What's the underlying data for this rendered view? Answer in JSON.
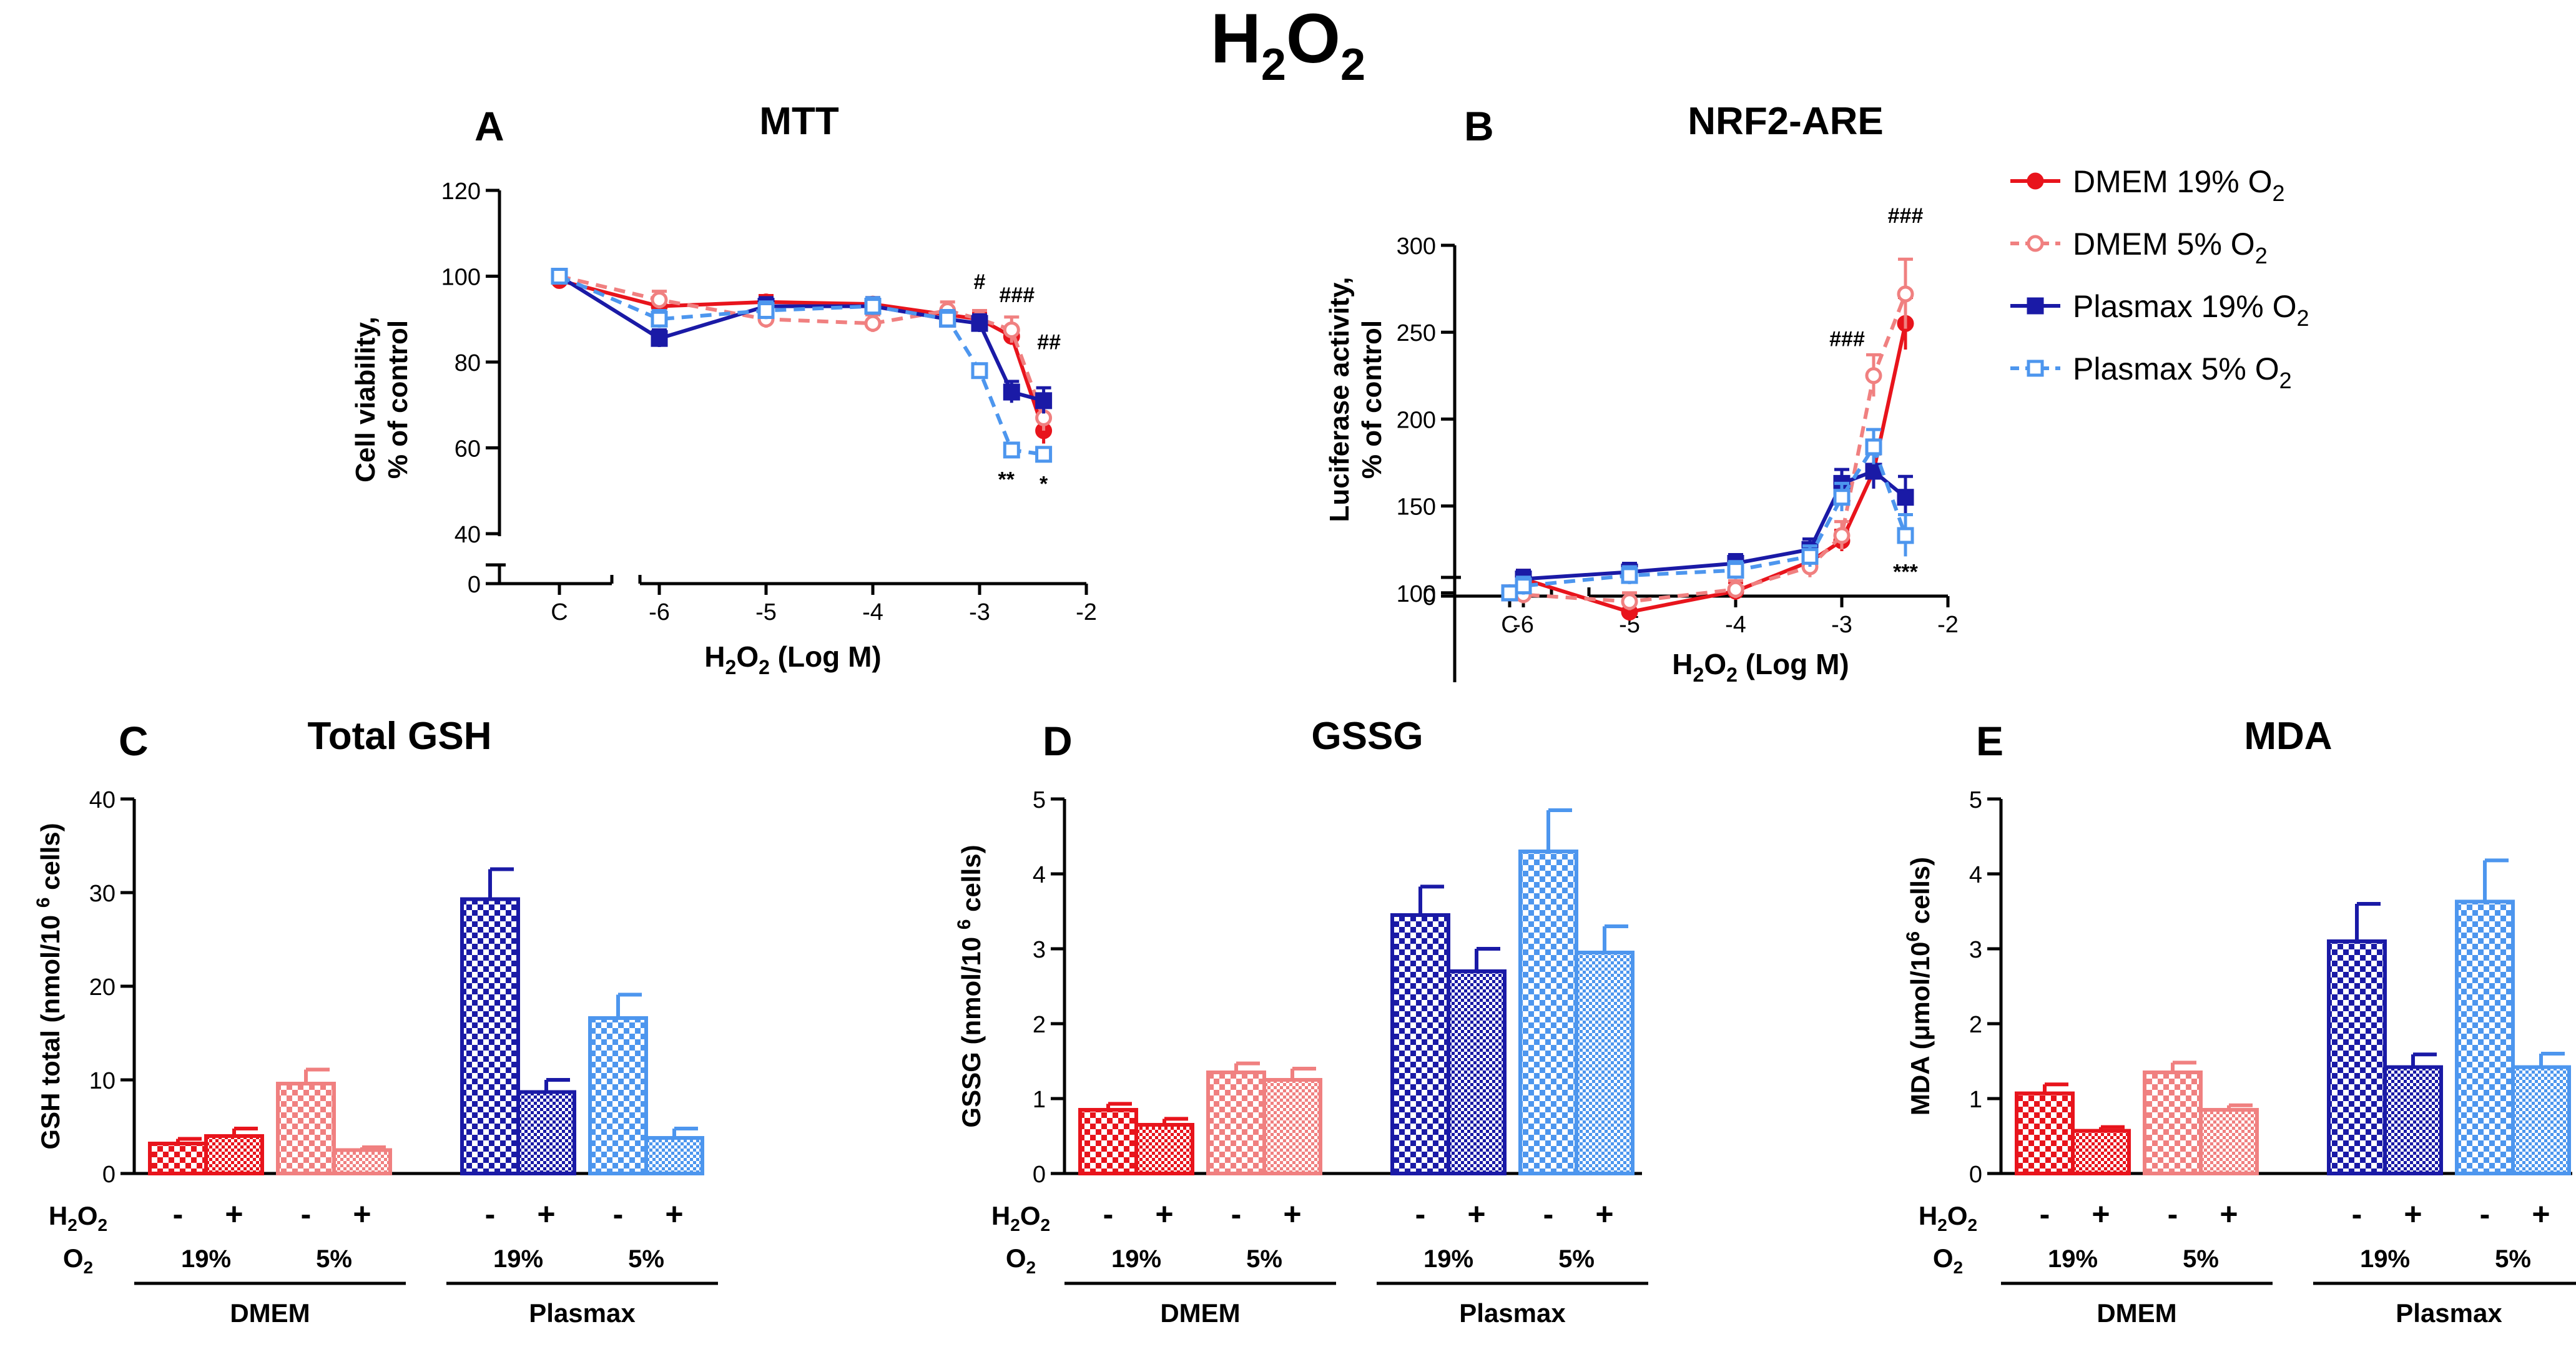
{
  "figure": {
    "title_main": "H",
    "title_sub1": "2",
    "title_mid": "O",
    "title_sub2": "2"
  },
  "colors": {
    "dmem19": "#e8141c",
    "dmem5": "#f08080",
    "plasmax19": "#1a1aa6",
    "plasmax5": "#4d96ee"
  },
  "legend": [
    {
      "key": "dmem19",
      "label": "DMEM 19% O",
      "sub": "2",
      "marker": "circle",
      "dash": false
    },
    {
      "key": "dmem5",
      "label": "DMEM 5% O",
      "sub": "2",
      "marker": "open-circle",
      "dash": true
    },
    {
      "key": "plasmax19",
      "label": "Plasmax 19% O",
      "sub": "2",
      "marker": "square",
      "dash": false
    },
    {
      "key": "plasmax5",
      "label": "Plasmax 5% O",
      "sub": "2",
      "marker": "open-square",
      "dash": true
    }
  ],
  "chart_data": [
    {
      "id": "A",
      "type": "line",
      "panel_letter": "A",
      "title": "MTT",
      "ylabel_line1": "Cell viability,",
      "ylabel_line2": "% of control",
      "xlabel_pre": "H",
      "xlabel_sub": "2",
      "xlabel_mid": "O",
      "xlabel_sub2": "2",
      "xlabel_post": " (Log M)",
      "ylim": [
        40,
        120
      ],
      "yticks": [
        40,
        60,
        80,
        100,
        120
      ],
      "ybreak_tick": 0,
      "xlim": [
        -7,
        -2
      ],
      "xticks": [
        -6,
        -5,
        -4,
        -3,
        -2
      ],
      "control_label": "C",
      "series": [
        {
          "name": "DMEM 19% O2",
          "key": "dmem19",
          "control": 99,
          "x": [
            -6,
            -5,
            -4,
            -3.3,
            -3,
            -2.7,
            -2.4
          ],
          "y": [
            93,
            94,
            93.5,
            91,
            90,
            86,
            64
          ],
          "err": [
            1.5,
            1.5,
            1.5,
            1.5,
            1.5,
            2,
            3
          ]
        },
        {
          "name": "DMEM 5% O2",
          "key": "dmem5",
          "control": 100,
          "x": [
            -6,
            -5,
            -4,
            -3.3,
            -3,
            -2.7,
            -2.4
          ],
          "y": [
            94.5,
            90,
            89,
            92,
            90,
            87.5,
            67
          ],
          "err": [
            2,
            2,
            2,
            2,
            2,
            3,
            3
          ]
        },
        {
          "name": "Plasmax 19% O2",
          "key": "plasmax19",
          "control": 100,
          "x": [
            -6,
            -5,
            -4,
            -3.3,
            -3,
            -2.7,
            -2.4
          ],
          "y": [
            85.5,
            93,
            93,
            90,
            89,
            73,
            71
          ],
          "err": [
            2,
            2,
            2,
            2,
            2,
            2.5,
            3
          ]
        },
        {
          "name": "Plasmax 5% O2",
          "key": "plasmax5",
          "control": 100,
          "x": [
            -6,
            -5,
            -4,
            -3.3,
            -3,
            -2.7,
            -2.4
          ],
          "y": [
            90,
            92,
            93,
            90,
            78,
            59.5,
            58.5
          ],
          "err": [
            2,
            2,
            2,
            2,
            1.5,
            1.5,
            1.5
          ]
        }
      ],
      "annotations": [
        {
          "text": "#",
          "x": -3,
          "y": 97
        },
        {
          "text": "###",
          "x": -2.65,
          "y": 94
        },
        {
          "text": "##",
          "x": -2.35,
          "y": 83
        },
        {
          "text": "**",
          "x": -2.75,
          "y": 51
        },
        {
          "text": "*",
          "x": -2.4,
          "y": 50
        }
      ]
    },
    {
      "id": "B",
      "type": "line",
      "panel_letter": "B",
      "title": "NRF2-ARE",
      "ylabel_line1": "Luciferase activity,",
      "ylabel_line2": "% of control",
      "xlabel_pre": "H",
      "xlabel_sub": "2",
      "xlabel_mid": "O",
      "xlabel_sub2": "2",
      "xlabel_post": " (Log M)",
      "ylim": [
        50,
        300
      ],
      "yticks": [
        100,
        150,
        200,
        250,
        300
      ],
      "ybreak_tick": 0,
      "xlim": [
        -7,
        -2
      ],
      "xticks": [
        -6,
        -5,
        -4,
        -3,
        -2
      ],
      "control_label": "C",
      "series": [
        {
          "name": "DMEM 19% O2",
          "key": "dmem19",
          "control": 100,
          "x": [
            -6,
            -5,
            -4,
            -3.3,
            -3,
            -2.7,
            -2.4
          ],
          "y": [
            108,
            89,
            101,
            118,
            130,
            170,
            255
          ],
          "err": [
            5,
            5,
            5,
            6,
            6,
            10,
            15
          ]
        },
        {
          "name": "DMEM 5% O2",
          "key": "dmem5",
          "control": 100,
          "x": [
            -6,
            -5,
            -4,
            -3.3,
            -3,
            -2.7,
            -2.4
          ],
          "y": [
            99,
            95,
            102,
            115,
            133,
            225,
            272
          ],
          "err": [
            5,
            5,
            5,
            6,
            8,
            12,
            20
          ]
        },
        {
          "name": "Plasmax 19% O2",
          "key": "plasmax19",
          "control": 100,
          "x": [
            -6,
            -5,
            -4,
            -3.3,
            -3,
            -2.7,
            -2.4
          ],
          "y": [
            108,
            112,
            117,
            125,
            163,
            170,
            155
          ],
          "err": [
            5,
            5,
            5,
            6,
            8,
            10,
            12
          ]
        },
        {
          "name": "Plasmax 5% O2",
          "key": "plasmax5",
          "control": 100,
          "x": [
            -6,
            -5,
            -4,
            -3.3,
            -3,
            -2.7,
            -2.4
          ],
          "y": [
            104,
            110,
            113,
            121,
            155,
            184,
            133
          ],
          "err": [
            5,
            5,
            5,
            6,
            8,
            10,
            12
          ]
        }
      ],
      "annotations": [
        {
          "text": "###",
          "x": -2.95,
          "y": 242
        },
        {
          "text": "###",
          "x": -2.4,
          "y": 313
        },
        {
          "text": "***",
          "x": -2.4,
          "y": 108
        }
      ]
    },
    {
      "id": "C",
      "type": "bar",
      "panel_letter": "C",
      "title": "Total GSH",
      "ylabel": "GSH total (nmol/10 ",
      "ylabel_sup": "6",
      "ylabel_post": " cells)",
      "ylim": [
        0,
        40
      ],
      "yticks": [
        0,
        10,
        20,
        30,
        40
      ],
      "categories": [
        "DMEM 19% -",
        "DMEM 19% +",
        "DMEM 5% -",
        "DMEM 5% +",
        "Plasmax 19% -",
        "Plasmax 19% +",
        "Plasmax 5% -",
        "Plasmax 5% +"
      ],
      "bar_keys": [
        "dmem19",
        "dmem19",
        "dmem5",
        "dmem5",
        "plasmax19",
        "plasmax19",
        "plasmax5",
        "plasmax5"
      ],
      "values": [
        3.2,
        4.0,
        9.6,
        2.5,
        29.3,
        8.7,
        16.6,
        3.8
      ],
      "errors": [
        0.5,
        0.8,
        1.5,
        0.3,
        3.2,
        1.3,
        2.5,
        1.0
      ]
    },
    {
      "id": "D",
      "type": "bar",
      "panel_letter": "D",
      "title": "GSSG",
      "ylabel": "GSSG (nmol/10 ",
      "ylabel_sup": "6",
      "ylabel_post": " cells)",
      "ylim": [
        0,
        5
      ],
      "yticks": [
        0,
        1,
        2,
        3,
        4,
        5
      ],
      "categories": [
        "DMEM 19% -",
        "DMEM 19% +",
        "DMEM 5% -",
        "DMEM 5% +",
        "Plasmax 19% -",
        "Plasmax 19% +",
        "Plasmax 5% -",
        "Plasmax 5% +"
      ],
      "bar_keys": [
        "dmem19",
        "dmem19",
        "dmem5",
        "dmem5",
        "plasmax19",
        "plasmax19",
        "plasmax5",
        "plasmax5"
      ],
      "values": [
        0.85,
        0.65,
        1.35,
        1.25,
        3.45,
        2.7,
        4.3,
        2.95
      ],
      "errors": [
        0.08,
        0.08,
        0.12,
        0.15,
        0.38,
        0.3,
        0.55,
        0.35
      ]
    },
    {
      "id": "E",
      "type": "bar",
      "panel_letter": "E",
      "title": "MDA",
      "ylabel": "MDA (μmol/10",
      "ylabel_sup": "6",
      "ylabel_post": " cells)",
      "ylim": [
        0,
        5
      ],
      "yticks": [
        0,
        1,
        2,
        3,
        4,
        5
      ],
      "categories": [
        "DMEM 19% -",
        "DMEM 19% +",
        "DMEM 5% -",
        "DMEM 5% +",
        "Plasmax 19% -",
        "Plasmax 19% +",
        "Plasmax 5% -",
        "Plasmax 5% +"
      ],
      "bar_keys": [
        "dmem19",
        "dmem19",
        "dmem5",
        "dmem5",
        "plasmax19",
        "plasmax19",
        "plasmax5",
        "plasmax5"
      ],
      "values": [
        1.07,
        0.57,
        1.35,
        0.85,
        3.1,
        1.42,
        3.63,
        1.42
      ],
      "errors": [
        0.12,
        0.05,
        0.13,
        0.06,
        0.5,
        0.17,
        0.55,
        0.18
      ]
    }
  ],
  "bar_table": {
    "h2o2_label_pre": "H",
    "h2o2_label_sub": "2",
    "h2o2_label_mid": "O",
    "h2o2_label_sub2": "2",
    "o2_label_pre": "O",
    "o2_label_sub": "2",
    "treat_signs": [
      "-",
      "+",
      "-",
      "+",
      "-",
      "+",
      "-",
      "+"
    ],
    "o2_values": [
      "19%",
      "5%",
      "19%",
      "5%"
    ],
    "media": [
      "DMEM",
      "Plasmax"
    ]
  }
}
